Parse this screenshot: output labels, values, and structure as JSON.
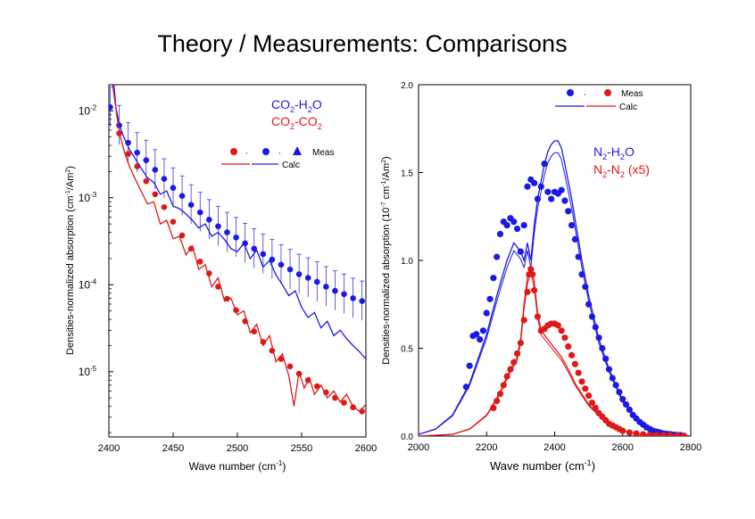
{
  "slide": {
    "title": "Theory / Measurements: Comparisons"
  },
  "colors": {
    "blue": "#1a1ae6",
    "red": "#e01818"
  },
  "chart_data": [
    {
      "type": "scatter",
      "scale_y": "log",
      "xlabel": "Wave number (cm",
      "xlabel_sup": "-1",
      "ylabel": "Densities-normalized absorption (cm",
      "ylabel_sup1": "-1",
      "ylabel_mid": "/Am",
      "ylabel_sup2": "2",
      "xlim": [
        2400,
        2600
      ],
      "ylim_log10": [
        -5.75,
        -1.7
      ],
      "x_ticks": [
        2400,
        2450,
        2500,
        2550,
        2600
      ],
      "x_tick_labels": [
        "2400",
        "2450",
        "2500",
        "2550",
        "2600"
      ],
      "y_ticks_log10": [
        -2,
        -3,
        -4,
        -5
      ],
      "y_tick_base": "10",
      "y_tick_exps": [
        "-2",
        "-3",
        "-4",
        "-5"
      ],
      "legend": {
        "series1": {
          "text": "CO",
          "sub1": "2",
          "rest": "-H",
          "sub2": "2",
          "end": "O"
        },
        "series2": {
          "text": "CO",
          "sub1": "2",
          "rest": "-CO",
          "sub2": "2"
        },
        "meas_label": "Meas",
        "calc_label": "Calc"
      },
      "series": [
        {
          "kind": "meas",
          "color": "blue",
          "errorbars": true,
          "x": [
            2401,
            2408,
            2415,
            2422,
            2429,
            2436,
            2443,
            2450,
            2457,
            2464,
            2471,
            2478,
            2485,
            2492,
            2499,
            2506,
            2513,
            2520,
            2527,
            2534,
            2541,
            2548,
            2555,
            2562,
            2569,
            2576,
            2583,
            2590,
            2597
          ],
          "y": [
            0.011,
            0.0068,
            0.0043,
            0.0033,
            0.0027,
            0.0021,
            0.00165,
            0.0013,
            0.00105,
            0.00083,
            0.00068,
            0.00056,
            0.00047,
            0.0004,
            0.00035,
            0.0003,
            0.00026,
            0.000225,
            0.000195,
            0.00017,
            0.00015,
            0.000132,
            0.00012,
            0.000108,
            9.5e-05,
            8.5e-05,
            7.8e-05,
            7e-05,
            6.5e-05
          ]
        },
        {
          "kind": "meas",
          "color": "red",
          "x": [
            2408,
            2415,
            2422,
            2429,
            2436,
            2443,
            2450,
            2457,
            2464,
            2471,
            2478,
            2485,
            2492,
            2499,
            2506,
            2513,
            2520,
            2527,
            2534,
            2541,
            2548,
            2555,
            2562,
            2569,
            2576,
            2583,
            2590,
            2597
          ],
          "y": [
            0.0055,
            0.0032,
            0.0023,
            0.00155,
            0.0011,
            0.00078,
            0.00053,
            0.00037,
            0.00026,
            0.000185,
            0.000135,
            9.5e-05,
            6.9e-05,
            5.1e-05,
            3.8e-05,
            2.9e-05,
            2.2e-05,
            1.75e-05,
            1.4e-05,
            1.15e-05,
            9.5e-06,
            8e-06,
            6.8e-06,
            5.8e-06,
            5e-06,
            4.4e-06,
            3.9e-06,
            3.5e-06
          ]
        },
        {
          "kind": "calc",
          "color": "blue",
          "x": [
            2403,
            2405,
            2408,
            2412,
            2416,
            2420,
            2425,
            2430,
            2435,
            2440,
            2445,
            2450,
            2455,
            2460,
            2465,
            2470,
            2475,
            2480,
            2485,
            2490,
            2495,
            2500,
            2505,
            2510,
            2515,
            2520,
            2525,
            2530,
            2535,
            2540,
            2545,
            2550,
            2555,
            2560,
            2565,
            2570,
            2575,
            2580,
            2585,
            2590,
            2595,
            2600
          ],
          "y": [
            0.02,
            0.012,
            0.007,
            0.0048,
            0.0036,
            0.0029,
            0.0022,
            0.0017,
            0.0015,
            0.0011,
            0.0012,
            0.0008,
            0.00075,
            0.00065,
            0.00055,
            0.00045,
            0.0005,
            0.00036,
            0.0004,
            0.00033,
            0.00026,
            0.00024,
            0.0003,
            0.0002,
            0.00025,
            0.00016,
            0.00019,
            0.00013,
            0.0001,
            7.5e-05,
            8.5e-05,
            5.5e-05,
            4.2e-05,
            4.8e-05,
            3.2e-05,
            3.8e-05,
            2.6e-05,
            3e-05,
            2.4e-05,
            2e-05,
            1.7e-05,
            1.4e-05
          ]
        },
        {
          "kind": "calc",
          "color": "red",
          "x": [
            2404,
            2406,
            2409,
            2412,
            2416,
            2420,
            2425,
            2430,
            2435,
            2440,
            2445,
            2450,
            2455,
            2460,
            2465,
            2470,
            2475,
            2480,
            2485,
            2490,
            2495,
            2500,
            2505,
            2510,
            2515,
            2520,
            2525,
            2530,
            2535,
            2540,
            2544,
            2548,
            2552,
            2556,
            2560,
            2565,
            2570,
            2575,
            2580,
            2585,
            2590,
            2595,
            2600
          ],
          "y": [
            0.02,
            0.009,
            0.005,
            0.0034,
            0.0023,
            0.0017,
            0.0012,
            0.00085,
            0.0009,
            0.0005,
            0.00055,
            0.00034,
            0.00036,
            0.00022,
            0.00028,
            0.00015,
            0.00017,
            9.5e-05,
            0.00012,
            6.5e-05,
            7e-05,
            4.5e-05,
            5e-05,
            2.8e-05,
            3.5e-05,
            2e-05,
            2.6e-05,
            1.3e-05,
            1.6e-05,
            9e-06,
            4e-06,
            1e-05,
            6.5e-06,
            8.5e-06,
            5.5e-06,
            7e-06,
            5e-06,
            6e-06,
            4.5e-06,
            5.5e-06,
            4e-06,
            3.5e-06,
            4.2e-06
          ]
        }
      ]
    },
    {
      "type": "scatter",
      "xlabel": "Wave number (cm",
      "xlabel_sup": "-1",
      "ylabel": "Densities-normalized absorption (10",
      "ylabel_sup1": "-7",
      "ylabel_mid": " cm",
      "ylabel_sup2": "-1",
      "ylabel_mid2": "/Am",
      "ylabel_sup3": "2",
      "xlim": [
        2000,
        2800
      ],
      "ylim": [
        0,
        2.0
      ],
      "x_ticks": [
        2000,
        2200,
        2400,
        2600,
        2800
      ],
      "x_tick_labels": [
        "2000",
        "2200",
        "2400",
        "2600",
        "2800"
      ],
      "y_ticks": [
        0,
        0.5,
        1.0,
        1.5,
        2.0
      ],
      "y_tick_labels": [
        "0.0",
        "0.5",
        "1.0",
        "1.5",
        "2.0"
      ],
      "legend": {
        "series1": {
          "text": "N",
          "sub1": "2",
          "rest": "-H",
          "sub2": "2",
          "end": "O"
        },
        "series2": {
          "text": "N",
          "sub1": "2",
          "rest": "-N",
          "sub2": "2",
          "end": " (x5)"
        },
        "meas_label": "Meas",
        "calc_label": "Calc"
      },
      "series": [
        {
          "kind": "meas",
          "color": "blue",
          "x": [
            2140,
            2150,
            2160,
            2170,
            2180,
            2190,
            2200,
            2210,
            2220,
            2230,
            2240,
            2250,
            2260,
            2270,
            2280,
            2290,
            2300,
            2310,
            2320,
            2330,
            2340,
            2350,
            2360,
            2370,
            2380,
            2390,
            2400,
            2410,
            2420,
            2430,
            2440,
            2450,
            2460,
            2470,
            2480,
            2490,
            2500,
            2510,
            2520,
            2530,
            2540,
            2550,
            2560,
            2570,
            2580,
            2590,
            2600,
            2610,
            2620,
            2630,
            2640,
            2650,
            2660,
            2670,
            2680,
            2690,
            2700,
            2710,
            2720,
            2730,
            2740,
            2750,
            2760,
            2770
          ],
          "y": [
            0.28,
            0.4,
            0.57,
            0.58,
            0.55,
            0.6,
            0.7,
            0.78,
            0.9,
            1.02,
            1.15,
            1.22,
            1.2,
            1.24,
            1.22,
            1.18,
            1.05,
            1.2,
            1.42,
            1.46,
            1.44,
            1.35,
            1.42,
            1.55,
            1.39,
            1.35,
            1.39,
            1.38,
            1.4,
            1.34,
            1.28,
            1.2,
            1.12,
            1.02,
            0.92,
            0.85,
            0.75,
            0.68,
            0.62,
            0.56,
            0.5,
            0.44,
            0.38,
            0.33,
            0.29,
            0.25,
            0.21,
            0.18,
            0.15,
            0.12,
            0.1,
            0.08,
            0.065,
            0.05,
            0.04,
            0.03,
            0.025,
            0.02,
            0.015,
            0.012,
            0.01,
            0.008,
            0.006,
            0.005
          ]
        },
        {
          "kind": "calc",
          "color": "blue",
          "x": [
            2000,
            2050,
            2100,
            2150,
            2200,
            2230,
            2260,
            2280,
            2300,
            2310,
            2320,
            2330,
            2340,
            2350,
            2360,
            2370,
            2380,
            2390,
            2400,
            2410,
            2420,
            2430,
            2450,
            2480,
            2500,
            2530,
            2560,
            2600,
            2650,
            2700,
            2750,
            2800
          ],
          "y": [
            0.01,
            0.04,
            0.12,
            0.3,
            0.58,
            0.8,
            1.0,
            1.1,
            1.05,
            1.0,
            1.1,
            1.0,
            1.2,
            1.35,
            1.45,
            1.55,
            1.62,
            1.66,
            1.68,
            1.68,
            1.64,
            1.55,
            1.35,
            1.0,
            0.8,
            0.55,
            0.38,
            0.2,
            0.08,
            0.03,
            0.01,
            0.0
          ]
        },
        {
          "kind": "meas",
          "color": "red",
          "x": [
            2220,
            2230,
            2240,
            2250,
            2260,
            2270,
            2280,
            2290,
            2300,
            2310,
            2320,
            2325,
            2330,
            2335,
            2340,
            2350,
            2360,
            2370,
            2380,
            2390,
            2400,
            2410,
            2420,
            2430,
            2440,
            2450,
            2460,
            2470,
            2480,
            2490,
            2500,
            2510,
            2520,
            2530,
            2540,
            2550,
            2560,
            2570,
            2580,
            2590,
            2600,
            2620,
            2640,
            2660,
            2680,
            2700,
            2720,
            2740,
            2760,
            2780
          ],
          "y": [
            0.16,
            0.2,
            0.24,
            0.29,
            0.34,
            0.38,
            0.42,
            0.47,
            0.53,
            0.66,
            0.82,
            0.92,
            0.95,
            0.92,
            0.83,
            0.68,
            0.6,
            0.61,
            0.63,
            0.64,
            0.64,
            0.63,
            0.6,
            0.56,
            0.51,
            0.46,
            0.41,
            0.36,
            0.31,
            0.27,
            0.23,
            0.19,
            0.16,
            0.13,
            0.11,
            0.09,
            0.07,
            0.06,
            0.05,
            0.04,
            0.03,
            0.02,
            0.015,
            0.01,
            0.008,
            0.006,
            0.005,
            0.004,
            0.003,
            0.002
          ]
        },
        {
          "kind": "calc",
          "color": "red",
          "x": [
            2000,
            2100,
            2150,
            2200,
            2240,
            2270,
            2290,
            2300,
            2310,
            2320,
            2330,
            2340,
            2350,
            2360,
            2380,
            2400,
            2420,
            2440,
            2460,
            2480,
            2500,
            2530,
            2560,
            2600,
            2650,
            2700,
            2750,
            2800
          ],
          "y": [
            0.0,
            0.01,
            0.04,
            0.12,
            0.25,
            0.38,
            0.45,
            0.55,
            0.75,
            0.9,
            0.97,
            0.88,
            0.7,
            0.6,
            0.55,
            0.5,
            0.45,
            0.38,
            0.3,
            0.24,
            0.18,
            0.12,
            0.07,
            0.03,
            0.01,
            0.005,
            0.002,
            0.0
          ]
        }
      ]
    }
  ]
}
